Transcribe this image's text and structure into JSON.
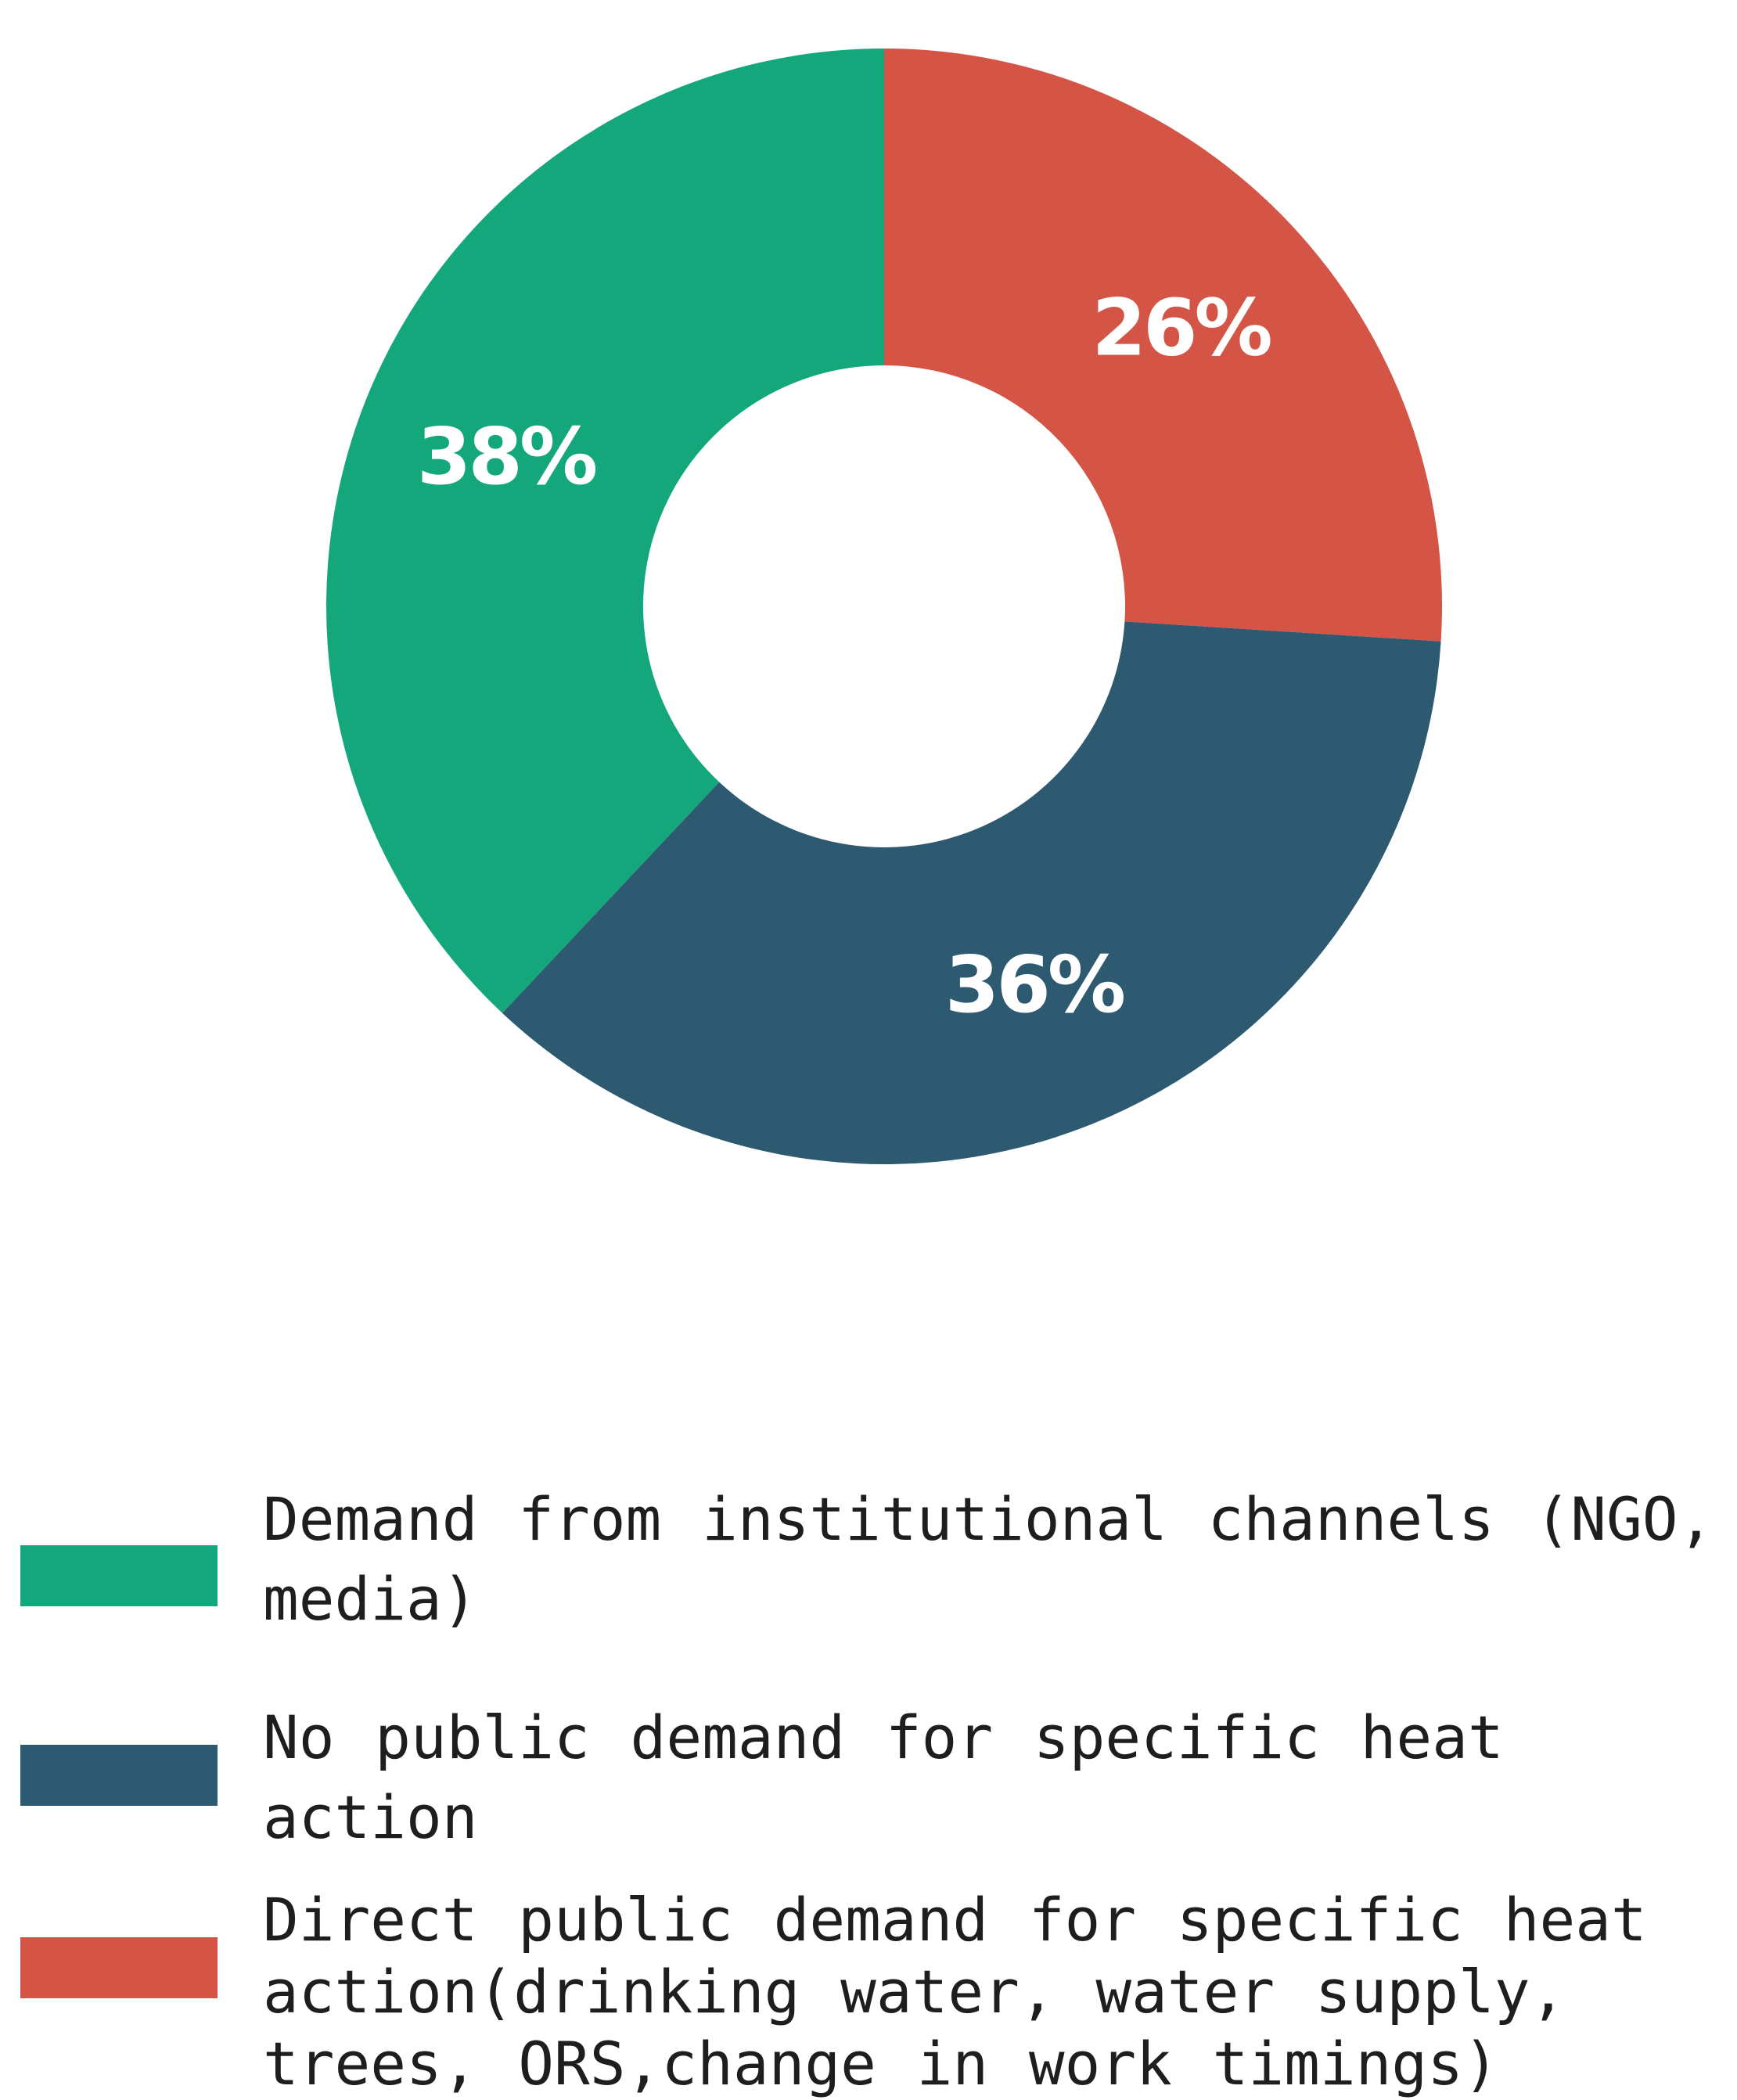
{
  "chart_data": {
    "type": "pie",
    "donut": true,
    "title": "",
    "slices": [
      {
        "label": "Direct public demand for specific heat action(drinking water, water supply, trees, ORS,change in work timings)",
        "value": 26,
        "display": "26%",
        "color": "#D45546"
      },
      {
        "label": "No public demand for specific heat action",
        "value": 36,
        "display": "36%",
        "color": "#2D5A71"
      },
      {
        "label": "Demand from institutional channels (NGO, media)",
        "value": 38,
        "display": "38%",
        "color": "#14A77C"
      }
    ],
    "start_angle": "12 o'clock",
    "direction": "clockwise",
    "legend_position": "bottom"
  },
  "legend": {
    "items": [
      {
        "label": "Demand from institutional channels (NGO, media)",
        "color": "#14A77C"
      },
      {
        "label": "No public demand for specific heat action",
        "color": "#2D5A71"
      },
      {
        "label": "Direct public demand for specific heat action(drinking water, water supply, trees, ORS,change in work timings)",
        "color": "#D45546"
      }
    ]
  }
}
